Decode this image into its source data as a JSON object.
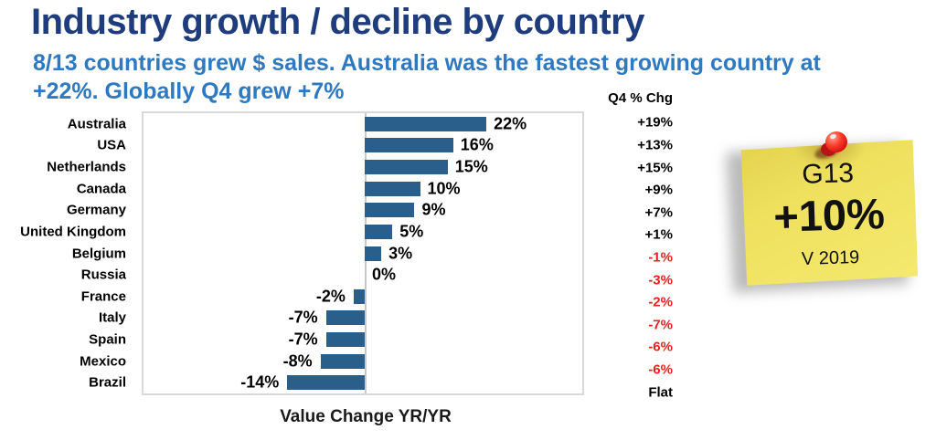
{
  "header": {
    "title": "Industry growth / decline by country",
    "subtitle_line1": "8/13 countries grew $ sales. Australia was the fastest growing country at",
    "subtitle_line2": "+22%. Globally Q4 grew +7%"
  },
  "chart_data": {
    "type": "bar",
    "orientation": "horizontal",
    "title": "",
    "categories": [
      "Australia",
      "USA",
      "Netherlands",
      "Canada",
      "Germany",
      "United Kingdom",
      "Belgium",
      "Russia",
      "France",
      "Italy",
      "Spain",
      "Mexico",
      "Brazil"
    ],
    "values": [
      22,
      16,
      15,
      10,
      9,
      5,
      3,
      0,
      -2,
      -7,
      -7,
      -8,
      -14
    ],
    "value_labels": [
      "22%",
      "16%",
      "15%",
      "10%",
      "9%",
      "5%",
      "3%",
      "0%",
      "-2%",
      "-7%",
      "-7%",
      "-8%",
      "-14%"
    ],
    "xlabel": "Value Change YR/YR",
    "ylabel": "",
    "xlim": [
      -40,
      40
    ],
    "grid": false,
    "legend": false,
    "bar_color": "#2B5F8B",
    "q4_column": {
      "header": "Q4 % Chg",
      "values": [
        "+19%",
        "+13%",
        "+15%",
        "+9%",
        "+7%",
        "+1%",
        "-1%",
        "-3%",
        "-2%",
        "-7%",
        "-6%",
        "-6%",
        "Flat"
      ],
      "positive_color": "#000000",
      "negative_color": "#F01E1E"
    }
  },
  "sticky_note": {
    "line1": "G13",
    "line2": "+10%",
    "line3": "V 2019",
    "note_color": "#EFE15E",
    "pin_color": "#E81C1C"
  },
  "colors": {
    "title": "#1F3D7C",
    "subtitle": "#2E79C0",
    "axis_frame": "#D9D9D9"
  }
}
